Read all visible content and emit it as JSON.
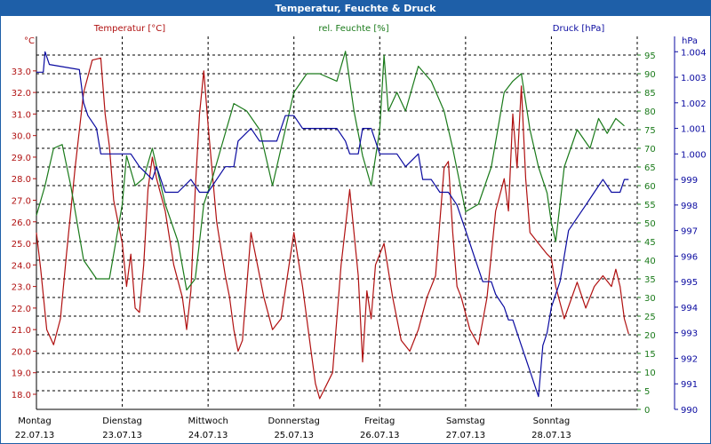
{
  "window": {
    "title": "Temperatur, Feuchte & Druck"
  },
  "colors": {
    "temp": "#b01010",
    "hum": "#1a7a1a",
    "press": "#0a0aa0",
    "grid": "#000000",
    "text": "#000000"
  },
  "chart_data": {
    "type": "line",
    "title": "Temperatur, Feuchte & Druck",
    "grid": true,
    "axes": {
      "temp": {
        "label": "Temperatur [°C]",
        "unit": "°C",
        "min": 17.3,
        "max": 34.6,
        "ticks": [
          "18.0",
          "19.0",
          "20.0",
          "21.0",
          "22.0",
          "23.0",
          "24.0",
          "25.0",
          "26.0",
          "27.0",
          "28.0",
          "29.0",
          "30.0",
          "31.0",
          "32.0",
          "33.0"
        ]
      },
      "hum": {
        "label": "rel. Feuchte [%]",
        "unit": "%",
        "min": 0,
        "max": 100,
        "ticks": [
          "0",
          "5",
          "10",
          "15",
          "20",
          "25",
          "30",
          "35",
          "40",
          "45",
          "50",
          "55",
          "60",
          "65",
          "70",
          "75",
          "80",
          "85",
          "90",
          "95"
        ]
      },
      "press": {
        "label": "Druck [hPa]",
        "unit": "hPa",
        "min": 990,
        "max": 1004.6,
        "ticks": [
          "990",
          "991",
          "992",
          "993",
          "994",
          "995",
          "996",
          "997",
          "998",
          "999",
          "1.000",
          "1.001",
          "1.002",
          "1.003",
          "1.004"
        ]
      }
    },
    "x_categories": [
      {
        "day": "Montag",
        "date": "22.07.13"
      },
      {
        "day": "Dienstag",
        "date": "23.07.13"
      },
      {
        "day": "Mittwoch",
        "date": "24.07.13"
      },
      {
        "day": "Donnerstag",
        "date": "25.07.13"
      },
      {
        "day": "Freitag",
        "date": "26.07.13"
      },
      {
        "day": "Samstag",
        "date": "27.07.13"
      },
      {
        "day": "Sonntag",
        "date": "28.07.13"
      }
    ],
    "x_range": [
      0,
      7
    ],
    "series": [
      {
        "name": "Temperatur",
        "axis": "temp",
        "color_key": "temp",
        "x": [
          0,
          0.05,
          0.12,
          0.2,
          0.28,
          0.35,
          0.45,
          0.55,
          0.65,
          0.75,
          0.8,
          0.85,
          0.9,
          1.0,
          1.05,
          1.1,
          1.15,
          1.2,
          1.25,
          1.3,
          1.35,
          1.4,
          1.5,
          1.6,
          1.7,
          1.75,
          1.8,
          1.85,
          1.9,
          1.95,
          2.0,
          2.1,
          2.2,
          2.25,
          2.3,
          2.35,
          2.4,
          2.45,
          2.5,
          2.55,
          2.65,
          2.75,
          2.85,
          3.0,
          3.1,
          3.2,
          3.25,
          3.3,
          3.45,
          3.55,
          3.65,
          3.75,
          3.8,
          3.85,
          3.9,
          3.95,
          4.05,
          4.15,
          4.25,
          4.35,
          4.45,
          4.55,
          4.65,
          4.7,
          4.75,
          4.8,
          4.85,
          4.9,
          4.95,
          5.05,
          5.15,
          5.25,
          5.35,
          5.45,
          5.5,
          5.55,
          5.6,
          5.65,
          5.7,
          5.75,
          5.85,
          5.95,
          6.0,
          6.05,
          6.15,
          6.3,
          6.4,
          6.5,
          6.6,
          6.7,
          6.75,
          6.8,
          6.85,
          6.9
        ],
        "values": [
          25.5,
          23.8,
          21.0,
          20.3,
          21.5,
          24.5,
          28.5,
          32.0,
          33.5,
          33.6,
          31.0,
          29.5,
          27.0,
          25.0,
          23.0,
          24.5,
          22.0,
          21.8,
          24.0,
          27.5,
          29.0,
          28.0,
          26.5,
          24.0,
          22.5,
          21.0,
          22.8,
          27.5,
          31.0,
          33.0,
          30.5,
          26.0,
          23.5,
          22.5,
          21.0,
          20.0,
          20.5,
          23.0,
          25.5,
          24.5,
          22.5,
          21.0,
          21.5,
          25.5,
          23.0,
          20.0,
          18.5,
          17.8,
          19.0,
          24.0,
          27.5,
          23.5,
          19.5,
          22.8,
          21.5,
          24.0,
          25.0,
          22.5,
          20.5,
          20.0,
          21.0,
          22.5,
          23.5,
          26.0,
          28.5,
          28.8,
          25.5,
          23.0,
          22.5,
          21.0,
          20.3,
          22.5,
          26.5,
          28.0,
          26.5,
          31.0,
          28.5,
          32.3,
          28.0,
          25.5,
          25.0,
          24.5,
          24.3,
          23.0,
          21.5,
          23.2,
          22.0,
          23.0,
          23.5,
          23.0,
          23.8,
          23.0,
          21.5,
          20.8
        ]
      },
      {
        "name": "rel. Feuchte",
        "axis": "hum",
        "color_key": "hum",
        "x": [
          0,
          0.1,
          0.2,
          0.3,
          0.4,
          0.55,
          0.7,
          0.85,
          1.0,
          1.05,
          1.15,
          1.25,
          1.35,
          1.5,
          1.65,
          1.75,
          1.85,
          1.95,
          2.05,
          2.15,
          2.3,
          2.45,
          2.6,
          2.75,
          2.85,
          3.0,
          3.15,
          3.3,
          3.5,
          3.6,
          3.7,
          3.8,
          3.9,
          4.0,
          4.05,
          4.1,
          4.2,
          4.3,
          4.45,
          4.6,
          4.75,
          4.85,
          5.0,
          5.15,
          5.3,
          5.45,
          5.55,
          5.65,
          5.75,
          5.85,
          5.95,
          6.0,
          6.05,
          6.15,
          6.3,
          6.45,
          6.55,
          6.65,
          6.75,
          6.85
        ],
        "values": [
          52,
          60,
          70,
          71,
          60,
          40,
          35,
          35,
          55,
          68,
          60,
          62,
          70,
          55,
          45,
          32,
          35,
          55,
          62,
          70,
          82,
          80,
          75,
          60,
          70,
          85,
          90,
          90,
          88,
          96,
          80,
          68,
          60,
          75,
          95,
          80,
          85,
          80,
          92,
          88,
          80,
          70,
          53,
          55,
          65,
          85,
          88,
          90,
          75,
          65,
          58,
          50,
          45,
          65,
          75,
          70,
          78,
          74,
          78,
          76
        ]
      },
      {
        "name": "Druck",
        "axis": "press",
        "color_key": "press",
        "x": [
          0,
          0.08,
          0.1,
          0.15,
          0.5,
          0.55,
          0.6,
          0.7,
          0.75,
          0.8,
          0.9,
          1.0,
          1.1,
          1.2,
          1.35,
          1.4,
          1.45,
          1.5,
          1.55,
          1.6,
          1.65,
          1.8,
          1.9,
          2.0,
          2.1,
          2.2,
          2.3,
          2.35,
          2.5,
          2.6,
          2.8,
          2.9,
          3.0,
          3.1,
          3.2,
          3.5,
          3.6,
          3.65,
          3.75,
          3.8,
          3.9,
          4.0,
          4.2,
          4.3,
          4.45,
          4.5,
          4.6,
          4.7,
          4.8,
          4.9,
          4.95,
          5.0,
          5.05,
          5.1,
          5.2,
          5.3,
          5.35,
          5.45,
          5.5,
          5.55,
          5.6,
          5.65,
          5.7,
          5.75,
          5.8,
          5.85,
          5.9,
          5.95,
          6.0,
          6.1,
          6.15,
          6.2,
          6.3,
          6.4,
          6.5,
          6.6,
          6.7,
          6.75,
          6.8,
          6.85,
          6.9
        ],
        "values": [
          1003.2,
          1003.2,
          1004.0,
          1003.5,
          1003.3,
          1002.0,
          1001.5,
          1001.0,
          1000.0,
          1000.0,
          1000.0,
          1000.0,
          1000.0,
          999.5,
          999.0,
          999.5,
          999.0,
          998.5,
          998.5,
          998.5,
          998.5,
          999.0,
          998.5,
          998.5,
          999.0,
          999.5,
          999.5,
          1000.5,
          1001.0,
          1000.5,
          1000.5,
          1001.5,
          1001.5,
          1001.0,
          1001.0,
          1001.0,
          1000.5,
          1000.0,
          1000.0,
          1001.0,
          1001.0,
          1000.0,
          1000.0,
          999.5,
          1000.0,
          999.0,
          999.0,
          998.5,
          998.5,
          998.0,
          997.5,
          997.0,
          996.5,
          996.0,
          995.0,
          995.0,
          994.5,
          994.0,
          993.5,
          993.5,
          993.0,
          992.5,
          992.0,
          991.5,
          991.0,
          990.5,
          992.5,
          993.0,
          994.0,
          995.0,
          996.0,
          997.0,
          997.5,
          998.0,
          998.5,
          999.0,
          998.5,
          998.5,
          998.5,
          999.0,
          999.0
        ]
      }
    ]
  }
}
